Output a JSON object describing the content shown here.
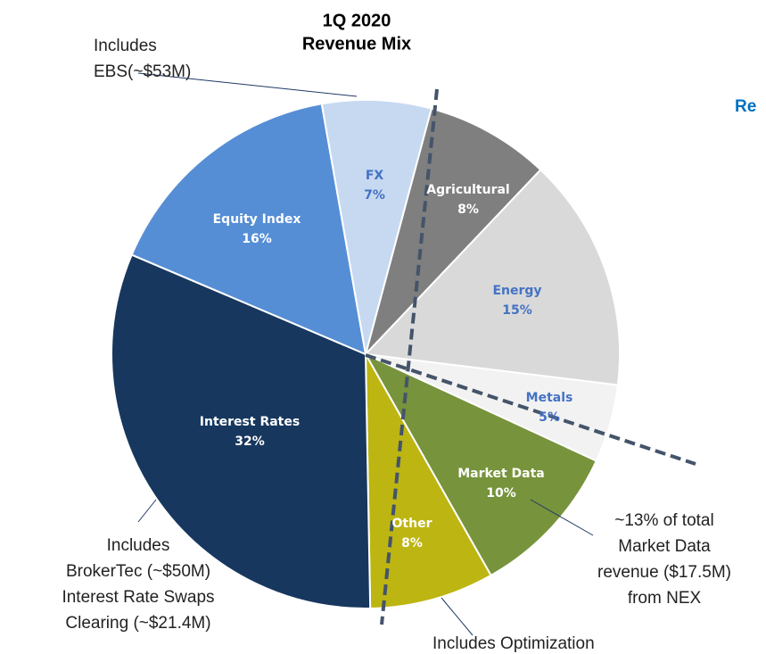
{
  "chart_data": {
    "type": "pie",
    "title": [
      "1Q 2020",
      "Revenue Mix"
    ],
    "categories": [
      "Agricultural",
      "Energy",
      "Metals",
      "Market Data",
      "Other",
      "Interest Rates",
      "Equity Index",
      "FX"
    ],
    "values": [
      8,
      15,
      5,
      10,
      8,
      32,
      16,
      7
    ],
    "value_labels": [
      "8%",
      "15%",
      "5%",
      "10%",
      "8%",
      "32%",
      "16%",
      "7%"
    ],
    "colors": [
      "#7f7f7f",
      "#d9d9d9",
      "#f2f2f2",
      "#77933c",
      "#bdb512",
      "#17375e",
      "#558ed5",
      "#c6d9f1"
    ],
    "label_colors": [
      "#ffffff",
      "#4472c4",
      "#4472c4",
      "#ffffff",
      "#ffffff",
      "#ffffff",
      "#ffffff",
      "#4472c4"
    ],
    "annotations": [
      {
        "lines": [
          "Includes",
          "EBS(~$53M)"
        ]
      },
      {
        "lines": [
          "Includes",
          "BrokerTec (~$50M)",
          "Interest Rate Swaps",
          "Clearing (~$21.4M)"
        ]
      },
      {
        "lines": [
          "~13% of total",
          "Market Data",
          "revenue ($17.5M)",
          "from NEX"
        ]
      },
      {
        "lines": [
          "Includes Optimization"
        ]
      }
    ],
    "side_heading": "Re"
  }
}
